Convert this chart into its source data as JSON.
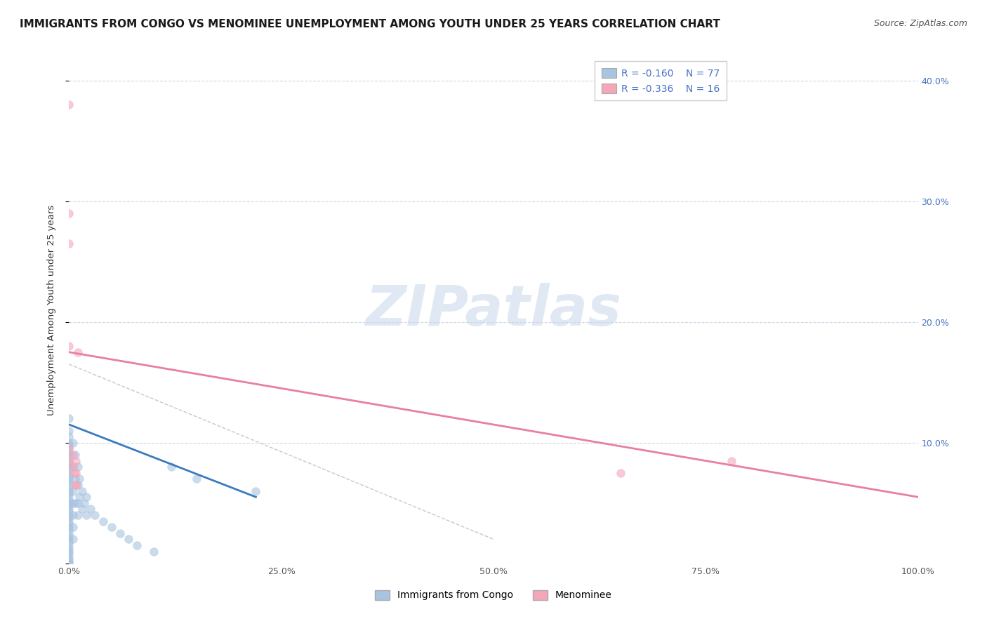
{
  "title": "IMMIGRANTS FROM CONGO VS MENOMINEE UNEMPLOYMENT AMONG YOUTH UNDER 25 YEARS CORRELATION CHART",
  "source": "Source: ZipAtlas.com",
  "ylabel": "Unemployment Among Youth under 25 years",
  "xlim": [
    0,
    1.0
  ],
  "ylim": [
    0,
    0.42
  ],
  "xticks": [
    0.0,
    0.25,
    0.5,
    0.75,
    1.0
  ],
  "xticklabels": [
    "0.0%",
    "25.0%",
    "50.0%",
    "75.0%",
    "100.0%"
  ],
  "yticks_left": [
    0.0,
    0.1,
    0.2,
    0.3,
    0.4
  ],
  "yticklabels_left": [
    "",
    "",
    "",
    "",
    ""
  ],
  "yticks_right": [
    0.1,
    0.2,
    0.3,
    0.4
  ],
  "yticklabels_right": [
    "10.0%",
    "20.0%",
    "30.0%",
    "40.0%"
  ],
  "legend_r1": "R = -0.160",
  "legend_n1": "N = 77",
  "legend_r2": "R = -0.336",
  "legend_n2": "N = 16",
  "legend_label1": "Immigrants from Congo",
  "legend_label2": "Menominee",
  "color_blue": "#a8c4e0",
  "color_pink": "#f4a7b9",
  "color_blue_line": "#3a7abf",
  "color_pink_line": "#e87fa0",
  "color_dashed": "#c8c8c8",
  "blue_scatter_x": [
    0.0,
    0.0,
    0.0,
    0.0,
    0.0,
    0.0,
    0.0,
    0.0,
    0.0,
    0.0,
    0.0,
    0.0,
    0.0,
    0.0,
    0.0,
    0.0,
    0.0,
    0.0,
    0.0,
    0.0,
    0.0,
    0.0,
    0.0,
    0.0,
    0.0,
    0.0,
    0.0,
    0.0,
    0.0,
    0.0,
    0.0,
    0.0,
    0.0,
    0.0,
    0.0,
    0.0,
    0.0,
    0.0,
    0.0,
    0.0,
    0.0,
    0.0,
    0.0,
    0.0,
    0.0,
    0.005,
    0.005,
    0.005,
    0.005,
    0.005,
    0.005,
    0.005,
    0.007,
    0.007,
    0.007,
    0.01,
    0.01,
    0.01,
    0.01,
    0.012,
    0.012,
    0.015,
    0.015,
    0.018,
    0.02,
    0.02,
    0.025,
    0.03,
    0.04,
    0.05,
    0.06,
    0.07,
    0.08,
    0.1,
    0.12,
    0.15,
    0.22
  ],
  "blue_scatter_y": [
    0.12,
    0.11,
    0.105,
    0.1,
    0.098,
    0.095,
    0.092,
    0.09,
    0.088,
    0.085,
    0.082,
    0.08,
    0.078,
    0.075,
    0.072,
    0.07,
    0.068,
    0.065,
    0.062,
    0.06,
    0.058,
    0.055,
    0.052,
    0.05,
    0.048,
    0.045,
    0.043,
    0.04,
    0.038,
    0.035,
    0.033,
    0.03,
    0.028,
    0.025,
    0.022,
    0.02,
    0.018,
    0.015,
    0.012,
    0.01,
    0.008,
    0.005,
    0.003,
    0.001,
    0.0,
    0.1,
    0.08,
    0.06,
    0.05,
    0.04,
    0.03,
    0.02,
    0.09,
    0.07,
    0.05,
    0.08,
    0.065,
    0.05,
    0.04,
    0.07,
    0.055,
    0.06,
    0.045,
    0.05,
    0.055,
    0.04,
    0.045,
    0.04,
    0.035,
    0.03,
    0.025,
    0.02,
    0.015,
    0.01,
    0.08,
    0.07,
    0.06
  ],
  "pink_scatter_x": [
    0.0,
    0.0,
    0.0,
    0.0,
    0.0,
    0.0,
    0.005,
    0.005,
    0.006,
    0.007,
    0.008,
    0.008,
    0.009,
    0.01,
    0.65,
    0.78
  ],
  "pink_scatter_y": [
    0.38,
    0.29,
    0.265,
    0.18,
    0.095,
    0.085,
    0.09,
    0.08,
    0.075,
    0.065,
    0.085,
    0.075,
    0.065,
    0.175,
    0.075,
    0.085
  ],
  "blue_trend_x": [
    0.0,
    0.22
  ],
  "blue_trend_y": [
    0.115,
    0.055
  ],
  "pink_trend_x": [
    0.0,
    1.0
  ],
  "pink_trend_y": [
    0.175,
    0.055
  ],
  "dashed_trend_x": [
    0.0,
    0.5
  ],
  "dashed_trend_y": [
    0.165,
    0.02
  ],
  "title_fontsize": 11,
  "axis_fontsize": 9.5,
  "tick_fontsize": 9,
  "source_fontsize": 9,
  "watermark_text": "ZIPatlas",
  "background_color": "#ffffff",
  "grid_color": "#d0d8e8",
  "tick_color": "#4472c4",
  "legend_fontsize": 10
}
